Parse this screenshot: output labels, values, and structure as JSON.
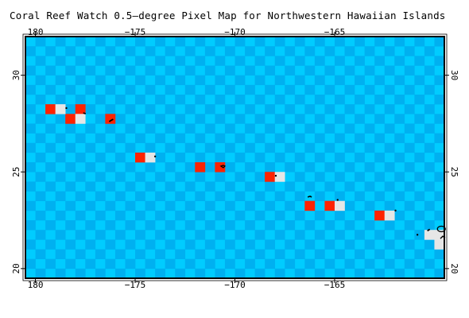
{
  "title": "Coral Reef Watch 0.5–degree Pixel Map for Northwestern Hawaiian Islands",
  "extent": {
    "lon_min": -180.5,
    "lon_max": -159.5,
    "lat_min": 19.5,
    "lat_max": 32.0
  },
  "lon_ticks": [
    {
      "value": -180,
      "label": "180"
    },
    {
      "value": -175,
      "label": "−175"
    },
    {
      "value": -170,
      "label": "−170"
    },
    {
      "value": -165,
      "label": "−165"
    }
  ],
  "lat_ticks": [
    {
      "value": 30,
      "label": "30"
    },
    {
      "value": 25,
      "label": "25"
    },
    {
      "value": 20,
      "label": "20"
    }
  ],
  "colors": {
    "ocean_light": "#00ccff",
    "ocean_dark": "#00b0f0",
    "reef_pixel": "#ff2200",
    "land_pixel": "#e6e6e6",
    "frame": "#000000"
  },
  "reef_pixels": [
    {
      "lon": -179.25,
      "lat": 28.25
    },
    {
      "lon": -177.75,
      "lat": 28.25
    },
    {
      "lon": -178.25,
      "lat": 27.75
    },
    {
      "lon": -176.25,
      "lat": 27.75
    },
    {
      "lon": -174.75,
      "lat": 25.75
    },
    {
      "lon": -171.75,
      "lat": 25.25
    },
    {
      "lon": -170.75,
      "lat": 25.25
    },
    {
      "lon": -168.25,
      "lat": 24.75
    },
    {
      "lon": -166.25,
      "lat": 23.25
    },
    {
      "lon": -165.25,
      "lat": 23.25
    },
    {
      "lon": -162.75,
      "lat": 22.75
    }
  ],
  "land_pixels": [
    {
      "lon": -178.75,
      "lat": 28.25
    },
    {
      "lon": -177.75,
      "lat": 27.75
    },
    {
      "lon": -174.25,
      "lat": 25.75
    },
    {
      "lon": -167.75,
      "lat": 24.75
    },
    {
      "lon": -164.75,
      "lat": 23.25
    },
    {
      "lon": -162.25,
      "lat": 22.75
    },
    {
      "lon": -160.25,
      "lat": 21.75
    },
    {
      "lon": -159.75,
      "lat": 21.75
    },
    {
      "lon": -159.75,
      "lat": 21.25
    }
  ]
}
